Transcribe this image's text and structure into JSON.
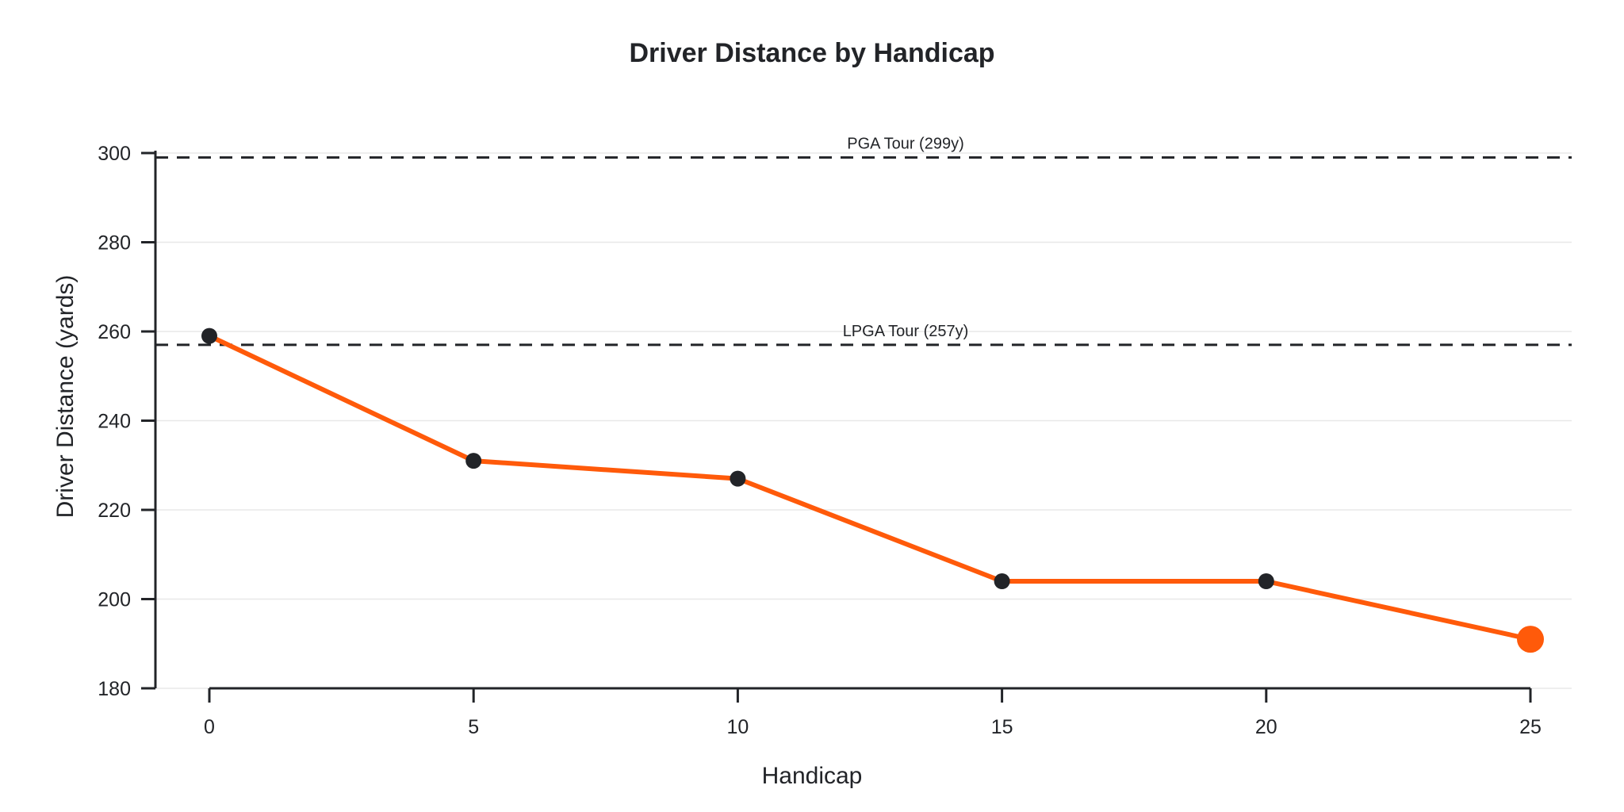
{
  "chart_data": {
    "type": "line",
    "title": "Driver Distance by Handicap",
    "xlabel": "Handicap",
    "ylabel": "Driver Distance (yards)",
    "x": [
      0,
      5,
      10,
      15,
      20,
      25
    ],
    "series": [
      {
        "name": "Driver Distance",
        "values": [
          259,
          231,
          227,
          204,
          204,
          191
        ],
        "color": "#FF5A0A",
        "marker_color": "#222428",
        "highlight_last_point": true
      }
    ],
    "xlim": [
      -2,
      27
    ],
    "ylim": [
      180,
      300
    ],
    "xticks": [
      0,
      5,
      10,
      15,
      20,
      25
    ],
    "yticks": [
      180,
      200,
      220,
      240,
      260,
      280,
      300
    ],
    "grid": "horizontal",
    "legend": null,
    "reference_lines": [
      {
        "label": "PGA Tour (299y)",
        "value": 299,
        "style": "dashed",
        "color": "#222428"
      },
      {
        "label": "LPGA Tour (257y)",
        "value": 257,
        "style": "dashed",
        "color": "#222428"
      }
    ]
  },
  "labels": {
    "title": "Driver Distance by Handicap",
    "xlabel": "Handicap",
    "ylabel": "Driver Distance (yards)",
    "pga": "PGA Tour (299y)",
    "lpga": "LPGA Tour (257y)",
    "yticks": [
      "180",
      "200",
      "220",
      "240",
      "260",
      "280",
      "300"
    ],
    "xticks": [
      "0",
      "5",
      "10",
      "15",
      "20",
      "25"
    ]
  },
  "colors": {
    "accent": "#FF5A0A",
    "ink": "#222428",
    "grid": "#E8E8E8"
  }
}
